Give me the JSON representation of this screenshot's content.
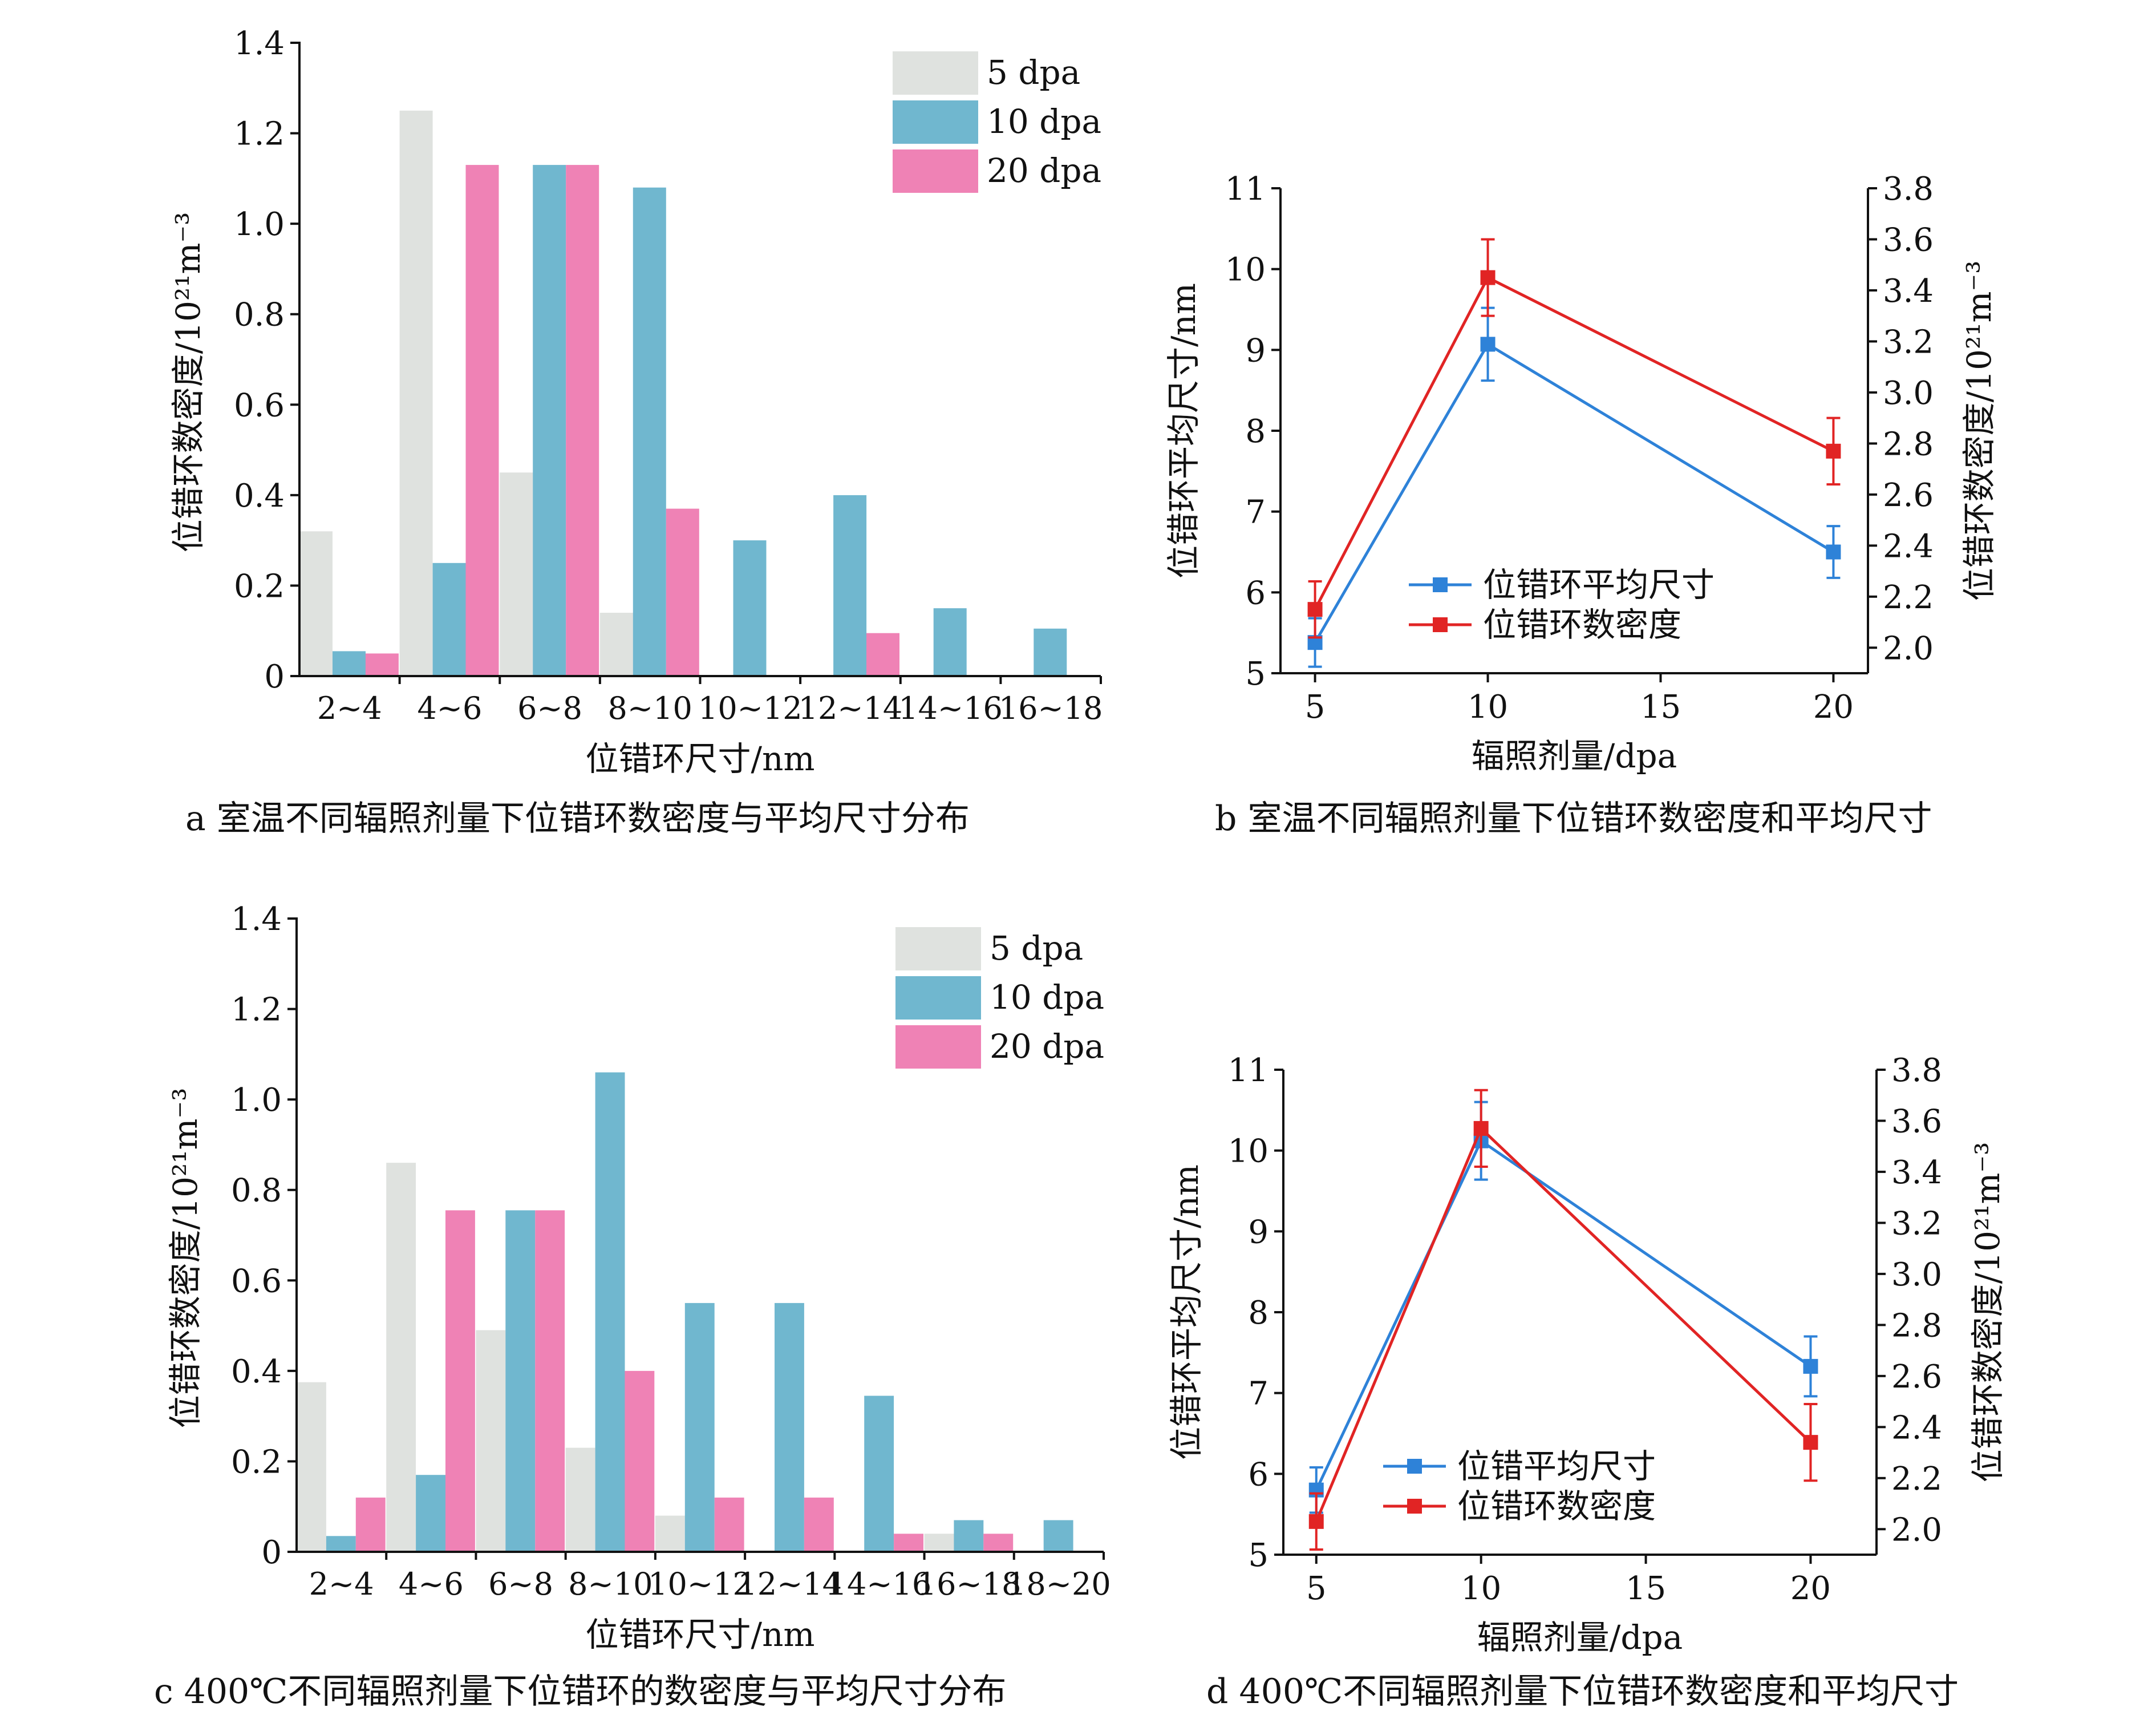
{
  "colors": {
    "dpa5": "#dfe2df",
    "dpa10": "#70b7cf",
    "dpa20": "#ef82b5",
    "line_size": "#2e82d8",
    "line_density": "#e12424",
    "axis": "#111111"
  },
  "chart_data": [
    {
      "id": "a",
      "type": "bar",
      "caption": "a  室温不同辐照剂量下位错环数密度与平均尺寸分布",
      "xlabel": "位错环尺寸/nm",
      "ylabel": "位错环数密度/10²¹m⁻³",
      "ylim": [
        0,
        1.4
      ],
      "yticks": [
        "0",
        "0.2",
        "0.4",
        "0.6",
        "0.8",
        "1.0",
        "1.2",
        "1.4"
      ],
      "categories": [
        "2~4",
        "4~6",
        "6~8",
        "8~10",
        "10~12",
        "12~14",
        "14~16",
        "16~18"
      ],
      "legend": {
        "position": "top-right"
      },
      "series": [
        {
          "name": "5 dpa",
          "color": "#dfe2df",
          "values": [
            0.32,
            1.25,
            0.45,
            0.14,
            0,
            0,
            0,
            0
          ]
        },
        {
          "name": "10 dpa",
          "color": "#70b7cf",
          "values": [
            0.055,
            0.25,
            1.13,
            1.08,
            0.3,
            0.4,
            0.15,
            0.105
          ]
        },
        {
          "name": "20 dpa",
          "color": "#ef82b5",
          "values": [
            0.05,
            1.13,
            1.13,
            0.37,
            0,
            0.095,
            0,
            0
          ]
        }
      ]
    },
    {
      "id": "b",
      "type": "line",
      "caption": "b  室温不同辐照剂量下位错环数密度和平均尺寸",
      "xlabel": "辐照剂量/dpa",
      "ylabel": "位错环平均尺寸/nm",
      "ylabel_right": "位错环数密度/10²¹m⁻³",
      "xlim": [
        4,
        21
      ],
      "xticks": [
        "5",
        "10",
        "15",
        "20"
      ],
      "ylim": [
        5,
        11
      ],
      "yticks": [
        "5",
        "6",
        "7",
        "8",
        "9",
        "10",
        "11"
      ],
      "ylim_right": [
        1.9,
        3.8
      ],
      "yticks_right": [
        "2.0",
        "2.2",
        "2.4",
        "2.6",
        "2.8",
        "3.0",
        "3.2",
        "3.4",
        "3.6",
        "3.8"
      ],
      "legend": {
        "position": "bottom-left"
      },
      "series": [
        {
          "name": "位错环平均尺寸",
          "axis": "left",
          "color": "#2e82d8",
          "x": [
            5,
            10,
            20
          ],
          "y": [
            5.38,
            9.07,
            6.5
          ],
          "err": [
            0.3,
            0.45,
            0.32
          ]
        },
        {
          "name": "位错环数密度",
          "axis": "right",
          "color": "#e12424",
          "x": [
            5,
            10,
            20
          ],
          "y": [
            2.15,
            3.45,
            2.77
          ],
          "err": [
            0.11,
            0.15,
            0.13
          ]
        }
      ]
    },
    {
      "id": "c",
      "type": "bar",
      "caption": "c  400℃不同辐照剂量下位错环的数密度与平均尺寸分布",
      "xlabel": "位错环尺寸/nm",
      "ylabel": "位错环数密度/10²¹m⁻³",
      "ylim": [
        0,
        1.4
      ],
      "yticks": [
        "0",
        "0.2",
        "0.4",
        "0.6",
        "0.8",
        "1.0",
        "1.2",
        "1.4"
      ],
      "categories": [
        "2~4",
        "4~6",
        "6~8",
        "8~10",
        "10~12",
        "12~14",
        "14~16",
        "16~18",
        "18~20"
      ],
      "legend": {
        "position": "top-right"
      },
      "series": [
        {
          "name": "5 dpa",
          "color": "#dfe2df",
          "values": [
            0.375,
            0.86,
            0.49,
            0.23,
            0.08,
            0,
            0,
            0.04,
            0
          ]
        },
        {
          "name": "10 dpa",
          "color": "#70b7cf",
          "values": [
            0.035,
            0.17,
            0.755,
            1.06,
            0.55,
            0.55,
            0.345,
            0.07,
            0.07
          ]
        },
        {
          "name": "20 dpa",
          "color": "#ef82b5",
          "values": [
            0.12,
            0.755,
            0.755,
            0.4,
            0.12,
            0.12,
            0.04,
            0.04,
            0
          ]
        }
      ]
    },
    {
      "id": "d",
      "type": "line",
      "caption": "d  400℃不同辐照剂量下位错环数密度和平均尺寸",
      "xlabel": "辐照剂量/dpa",
      "ylabel": "位错环平均尺寸/nm",
      "ylabel_right": "位错环数密度/10²¹m⁻³",
      "xlim": [
        4,
        22
      ],
      "xticks": [
        "5",
        "10",
        "15",
        "20"
      ],
      "ylim": [
        5,
        11
      ],
      "yticks": [
        "5",
        "6",
        "7",
        "8",
        "9",
        "10",
        "11"
      ],
      "ylim_right": [
        1.9,
        3.8
      ],
      "yticks_right": [
        "2.0",
        "2.2",
        "2.4",
        "2.6",
        "2.8",
        "3.0",
        "3.2",
        "3.4",
        "3.6",
        "3.8"
      ],
      "legend": {
        "position": "bottom-left"
      },
      "series": [
        {
          "name": "位错平均尺寸",
          "axis": "left",
          "color": "#2e82d8",
          "x": [
            5,
            10,
            20
          ],
          "y": [
            5.8,
            10.12,
            7.33
          ],
          "err": [
            0.28,
            0.48,
            0.37
          ]
        },
        {
          "name": "位错环数密度",
          "axis": "right",
          "color": "#e12424",
          "x": [
            5,
            10,
            20
          ],
          "y": [
            2.03,
            3.57,
            2.34
          ],
          "err": [
            0.11,
            0.15,
            0.15
          ]
        }
      ]
    }
  ]
}
